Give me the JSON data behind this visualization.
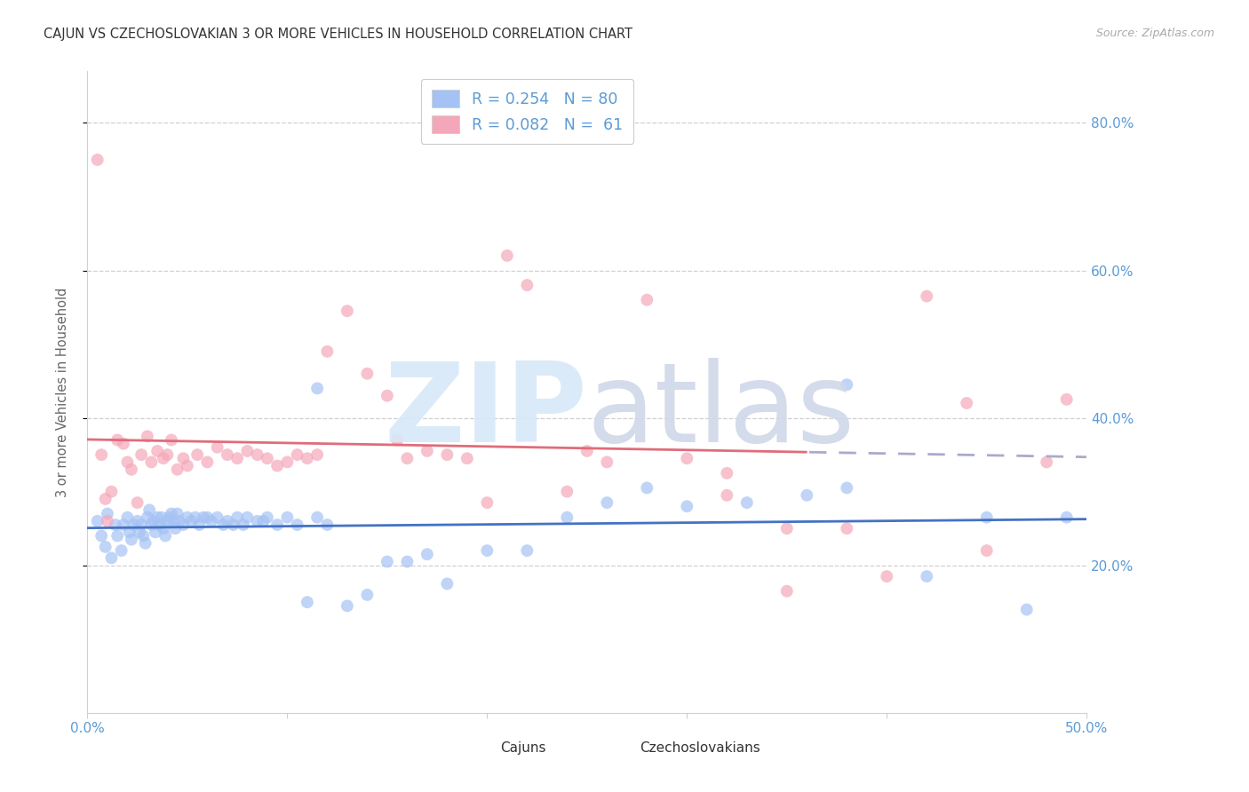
{
  "title": "CAJUN VS CZECHOSLOVAKIAN 3 OR MORE VEHICLES IN HOUSEHOLD CORRELATION CHART",
  "source": "Source: ZipAtlas.com",
  "ylabel": "3 or more Vehicles in Household",
  "x_min": 0.0,
  "x_max": 0.5,
  "y_min": 0.0,
  "y_max": 0.87,
  "x_ticks": [
    0.0,
    0.1,
    0.2,
    0.3,
    0.4,
    0.5
  ],
  "x_tick_labels_show": [
    "0.0%",
    "",
    "",
    "",
    "",
    "50.0%"
  ],
  "y_ticks": [
    0.2,
    0.4,
    0.6,
    0.8
  ],
  "y_tick_labels": [
    "20.0%",
    "40.0%",
    "60.0%",
    "80.0%"
  ],
  "cajun_color": "#a4c2f4",
  "czechoslovakian_color": "#f4a7b9",
  "cajun_line_color": "#4472c4",
  "czech_line_color": "#e06c7a",
  "dash_line_color": "#aaaacc",
  "tick_color": "#5b9bd5",
  "grid_color": "#d0d0d0",
  "legend_label1": "Cajuns",
  "legend_label2": "Czechoslovakians",
  "background_color": "#ffffff",
  "watermark_zip_color": "#d8e8f8",
  "watermark_atlas_color": "#d0d8e8",
  "cajun_points_x": [
    0.005,
    0.007,
    0.009,
    0.01,
    0.012,
    0.014,
    0.015,
    0.017,
    0.018,
    0.02,
    0.021,
    0.022,
    0.023,
    0.025,
    0.026,
    0.027,
    0.028,
    0.029,
    0.03,
    0.031,
    0.032,
    0.033,
    0.034,
    0.035,
    0.036,
    0.037,
    0.038,
    0.039,
    0.04,
    0.041,
    0.042,
    0.043,
    0.044,
    0.045,
    0.046,
    0.048,
    0.05,
    0.052,
    0.054,
    0.056,
    0.058,
    0.06,
    0.062,
    0.065,
    0.068,
    0.07,
    0.073,
    0.075,
    0.078,
    0.08,
    0.085,
    0.088,
    0.09,
    0.095,
    0.1,
    0.105,
    0.11,
    0.115,
    0.12,
    0.13,
    0.14,
    0.15,
    0.16,
    0.17,
    0.18,
    0.2,
    0.22,
    0.24,
    0.26,
    0.28,
    0.3,
    0.33,
    0.36,
    0.38,
    0.115,
    0.38,
    0.42,
    0.45,
    0.47,
    0.49
  ],
  "cajun_points_y": [
    0.26,
    0.24,
    0.225,
    0.27,
    0.21,
    0.255,
    0.24,
    0.22,
    0.255,
    0.265,
    0.245,
    0.235,
    0.255,
    0.26,
    0.245,
    0.255,
    0.24,
    0.23,
    0.265,
    0.275,
    0.255,
    0.26,
    0.245,
    0.265,
    0.255,
    0.265,
    0.25,
    0.24,
    0.26,
    0.265,
    0.27,
    0.26,
    0.25,
    0.27,
    0.26,
    0.255,
    0.265,
    0.26,
    0.265,
    0.255,
    0.265,
    0.265,
    0.26,
    0.265,
    0.255,
    0.26,
    0.255,
    0.265,
    0.255,
    0.265,
    0.26,
    0.26,
    0.265,
    0.255,
    0.265,
    0.255,
    0.15,
    0.265,
    0.255,
    0.145,
    0.16,
    0.205,
    0.205,
    0.215,
    0.175,
    0.22,
    0.22,
    0.265,
    0.285,
    0.305,
    0.28,
    0.285,
    0.295,
    0.445,
    0.44,
    0.305,
    0.185,
    0.265,
    0.14,
    0.265
  ],
  "czech_points_x": [
    0.005,
    0.007,
    0.009,
    0.01,
    0.012,
    0.015,
    0.018,
    0.02,
    0.022,
    0.025,
    0.027,
    0.03,
    0.032,
    0.035,
    0.038,
    0.04,
    0.042,
    0.045,
    0.048,
    0.05,
    0.055,
    0.06,
    0.065,
    0.07,
    0.075,
    0.08,
    0.085,
    0.09,
    0.095,
    0.1,
    0.105,
    0.11,
    0.115,
    0.12,
    0.13,
    0.14,
    0.15,
    0.155,
    0.16,
    0.17,
    0.18,
    0.19,
    0.2,
    0.21,
    0.22,
    0.24,
    0.26,
    0.28,
    0.3,
    0.32,
    0.35,
    0.38,
    0.4,
    0.42,
    0.45,
    0.48,
    0.49,
    0.25,
    0.35,
    0.44,
    0.32
  ],
  "czech_points_y": [
    0.75,
    0.35,
    0.29,
    0.26,
    0.3,
    0.37,
    0.365,
    0.34,
    0.33,
    0.285,
    0.35,
    0.375,
    0.34,
    0.355,
    0.345,
    0.35,
    0.37,
    0.33,
    0.345,
    0.335,
    0.35,
    0.34,
    0.36,
    0.35,
    0.345,
    0.355,
    0.35,
    0.345,
    0.335,
    0.34,
    0.35,
    0.345,
    0.35,
    0.49,
    0.545,
    0.46,
    0.43,
    0.37,
    0.345,
    0.355,
    0.35,
    0.345,
    0.285,
    0.62,
    0.58,
    0.3,
    0.34,
    0.56,
    0.345,
    0.295,
    0.165,
    0.25,
    0.185,
    0.565,
    0.22,
    0.34,
    0.425,
    0.355,
    0.25,
    0.42,
    0.325
  ]
}
